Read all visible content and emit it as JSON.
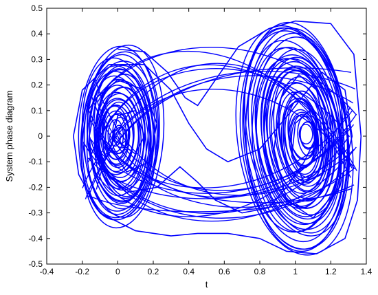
{
  "chart_data": {
    "type": "line",
    "title": "",
    "xlabel": "t",
    "ylabel": "System phase diagram",
    "xlim": [
      -0.4,
      1.4
    ],
    "ylim": [
      -0.5,
      0.5
    ],
    "xticks": [
      -0.4,
      -0.2,
      0,
      0.2,
      0.4,
      0.6,
      0.8,
      1,
      1.2,
      1.4
    ],
    "xtick_labels": [
      "-0.4",
      "-0.2",
      "0",
      "0.2",
      "0.4",
      "0.6",
      "0.8",
      "1",
      "1.2",
      "1.4"
    ],
    "yticks": [
      -0.5,
      -0.4,
      -0.3,
      -0.2,
      -0.1,
      0,
      0.1,
      0.2,
      0.3,
      0.4,
      0.5
    ],
    "ytick_labels": [
      "-0.5",
      "-0.4",
      "-0.3",
      "-0.2",
      "-0.1",
      "0",
      "0.1",
      "0.2",
      "0.3",
      "0.4",
      "0.5"
    ],
    "grid": false,
    "legend": "none",
    "line_color": "#0000ff",
    "series": [
      {
        "x": [
          0.0,
          0.15,
          0.28,
          0.38,
          0.45,
          0.55,
          0.68,
          0.85,
          1.0,
          1.2,
          1.33,
          1.37,
          1.35,
          1.28,
          1.12,
          0.95,
          0.8,
          0.62,
          0.45,
          0.3,
          0.1,
          -0.1,
          -0.22,
          -0.25,
          -0.2,
          -0.05,
          0.15,
          0.3,
          0.4,
          0.5,
          0.62,
          0.8,
          0.98,
          1.15,
          1.28,
          1.32,
          1.25,
          1.1,
          0.95,
          0.88,
          0.92,
          1.02,
          1.12,
          1.18,
          1.15,
          1.05,
          0.98,
          1.0,
          1.08,
          1.12,
          1.05,
          0.95,
          0.85,
          0.7,
          0.55,
          0.45,
          0.35,
          0.22,
          0.05,
          -0.1,
          -0.16,
          -0.12,
          0.0,
          0.15,
          0.22,
          0.18,
          0.05,
          -0.04,
          0.0,
          0.1,
          0.15,
          0.1,
          0.02,
          0.0
        ],
        "y": [
          0.34,
          0.33,
          0.25,
          0.15,
          0.12,
          0.22,
          0.35,
          0.42,
          0.45,
          0.44,
          0.32,
          0.0,
          -0.25,
          -0.4,
          -0.46,
          -0.45,
          -0.4,
          -0.38,
          -0.38,
          -0.39,
          -0.37,
          -0.3,
          -0.15,
          0.0,
          0.18,
          0.28,
          0.28,
          0.18,
          0.05,
          -0.05,
          -0.1,
          -0.05,
          0.1,
          0.25,
          0.18,
          0.0,
          -0.2,
          -0.32,
          -0.25,
          -0.05,
          0.15,
          0.24,
          0.18,
          0.0,
          -0.15,
          -0.18,
          -0.08,
          0.05,
          0.1,
          0.0,
          -0.1,
          -0.2,
          -0.28,
          -0.3,
          -0.25,
          -0.18,
          -0.12,
          -0.2,
          -0.22,
          -0.12,
          0.0,
          0.15,
          0.22,
          0.18,
          0.05,
          -0.1,
          -0.14,
          -0.05,
          0.08,
          0.1,
          0.0,
          -0.07,
          -0.03,
          0.0
        ]
      }
    ]
  }
}
